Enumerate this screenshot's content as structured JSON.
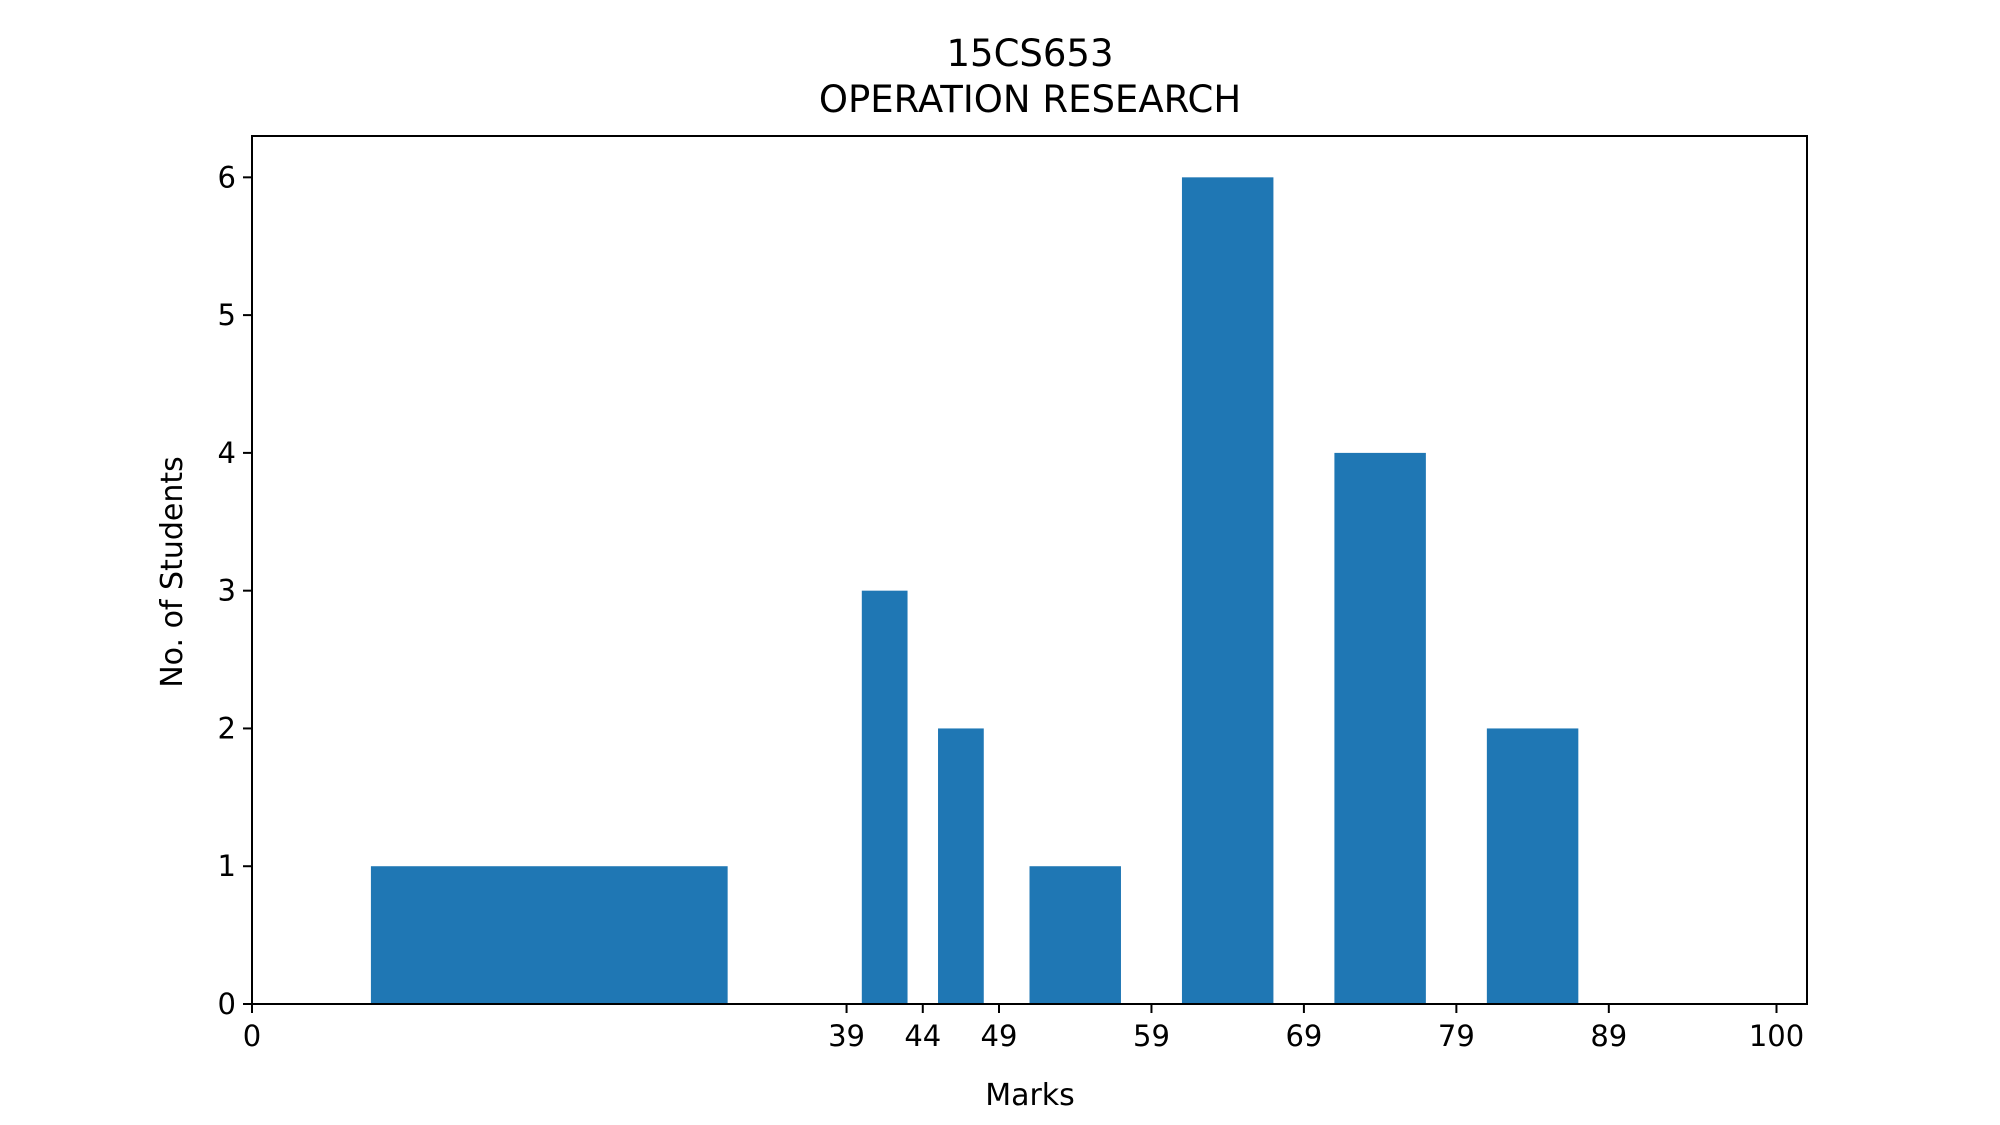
{
  "chart_data": {
    "type": "bar",
    "title": "15CS653",
    "subtitle": "OPERATION RESEARCH",
    "xlabel": "Marks",
    "ylabel": "No. of Students",
    "xlim": [
      0,
      102
    ],
    "ylim": [
      0,
      6.3
    ],
    "xticks": [
      0,
      39,
      44,
      49,
      59,
      69,
      79,
      89,
      100
    ],
    "yticks": [
      0,
      1,
      2,
      3,
      4,
      5,
      6
    ],
    "grid": false,
    "bar_color": "#1f77b4",
    "bars": [
      {
        "x_start": 7.8,
        "x_end": 31.2,
        "value": 1
      },
      {
        "x_start": 40.0,
        "x_end": 43.0,
        "value": 3
      },
      {
        "x_start": 45.0,
        "x_end": 48.0,
        "value": 2
      },
      {
        "x_start": 51.0,
        "x_end": 57.0,
        "value": 1
      },
      {
        "x_start": 61.0,
        "x_end": 67.0,
        "value": 6
      },
      {
        "x_start": 71.0,
        "x_end": 77.0,
        "value": 4
      },
      {
        "x_start": 81.0,
        "x_end": 87.0,
        "value": 2
      }
    ]
  }
}
